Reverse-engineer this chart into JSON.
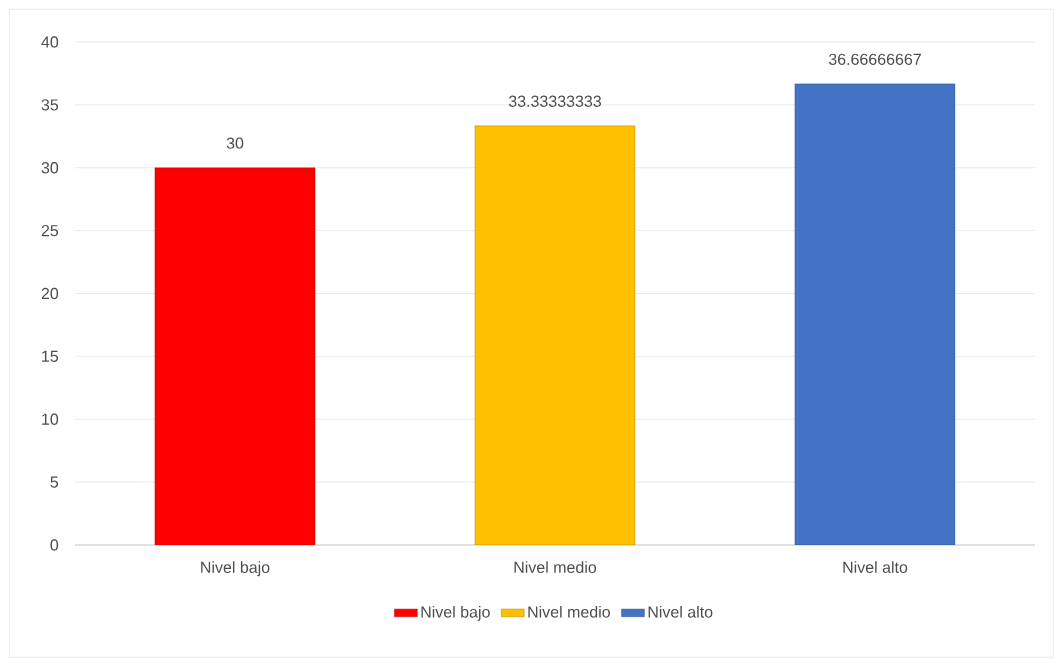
{
  "chart_data": {
    "type": "bar",
    "categories": [
      "Nivel bajo",
      "Nivel medio",
      "Nivel alto"
    ],
    "series": [
      {
        "name": "Nivel bajo",
        "color": "#ff0000",
        "values": [
          30,
          null,
          null
        ]
      },
      {
        "name": "Nivel medio",
        "color": "#ffc000",
        "values": [
          null,
          33.33333333,
          null
        ]
      },
      {
        "name": "Nivel alto",
        "color": "#4472c4",
        "values": [
          null,
          null,
          36.66666667
        ]
      }
    ],
    "ylim": [
      0,
      40
    ],
    "yticks": [
      0,
      5,
      10,
      15,
      20,
      25,
      30,
      35,
      40
    ],
    "grid": "y",
    "data_labels": true,
    "legend": "bottom"
  }
}
